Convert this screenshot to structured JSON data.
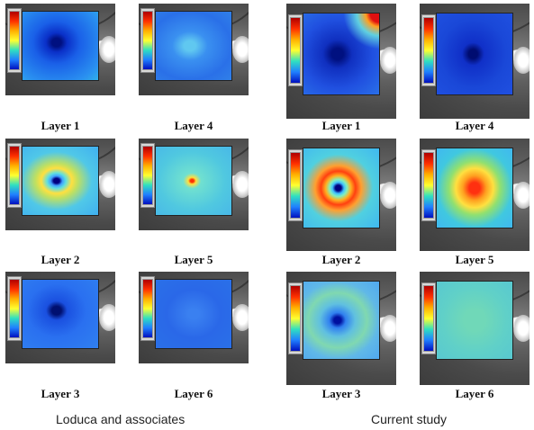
{
  "groups": [
    {
      "caption": "Loduca and associates",
      "panels": [
        {
          "label": "Layer 1",
          "map": "deep-blue-center"
        },
        {
          "label": "Layer 4",
          "map": "light-blue-uniform"
        },
        {
          "label": "Layer 2",
          "map": "ring-yellow"
        },
        {
          "label": "Layer 5",
          "map": "cyan-uniform-center-red"
        },
        {
          "label": "Layer 3",
          "map": "blue-dark-center"
        },
        {
          "label": "Layer 6",
          "map": "blue-uniform"
        }
      ]
    },
    {
      "caption": "Current study",
      "panels": [
        {
          "label": "Layer 1",
          "map": "blue-red-corner"
        },
        {
          "label": "Layer 4",
          "map": "blue-dark-center"
        },
        {
          "label": "Layer 2",
          "map": "ring-red"
        },
        {
          "label": "Layer 5",
          "map": "orange-center"
        },
        {
          "label": "Layer 3",
          "map": "mixed-blue-green"
        },
        {
          "label": "Layer 6",
          "map": "green-uniform"
        }
      ]
    }
  ],
  "colors": {
    "deep_blue": "#0a2fd0",
    "blue": "#2a6cf0",
    "cyan": "#40d0e0",
    "yellow": "#ffe040",
    "orange": "#ff8020",
    "red": "#e01010"
  }
}
